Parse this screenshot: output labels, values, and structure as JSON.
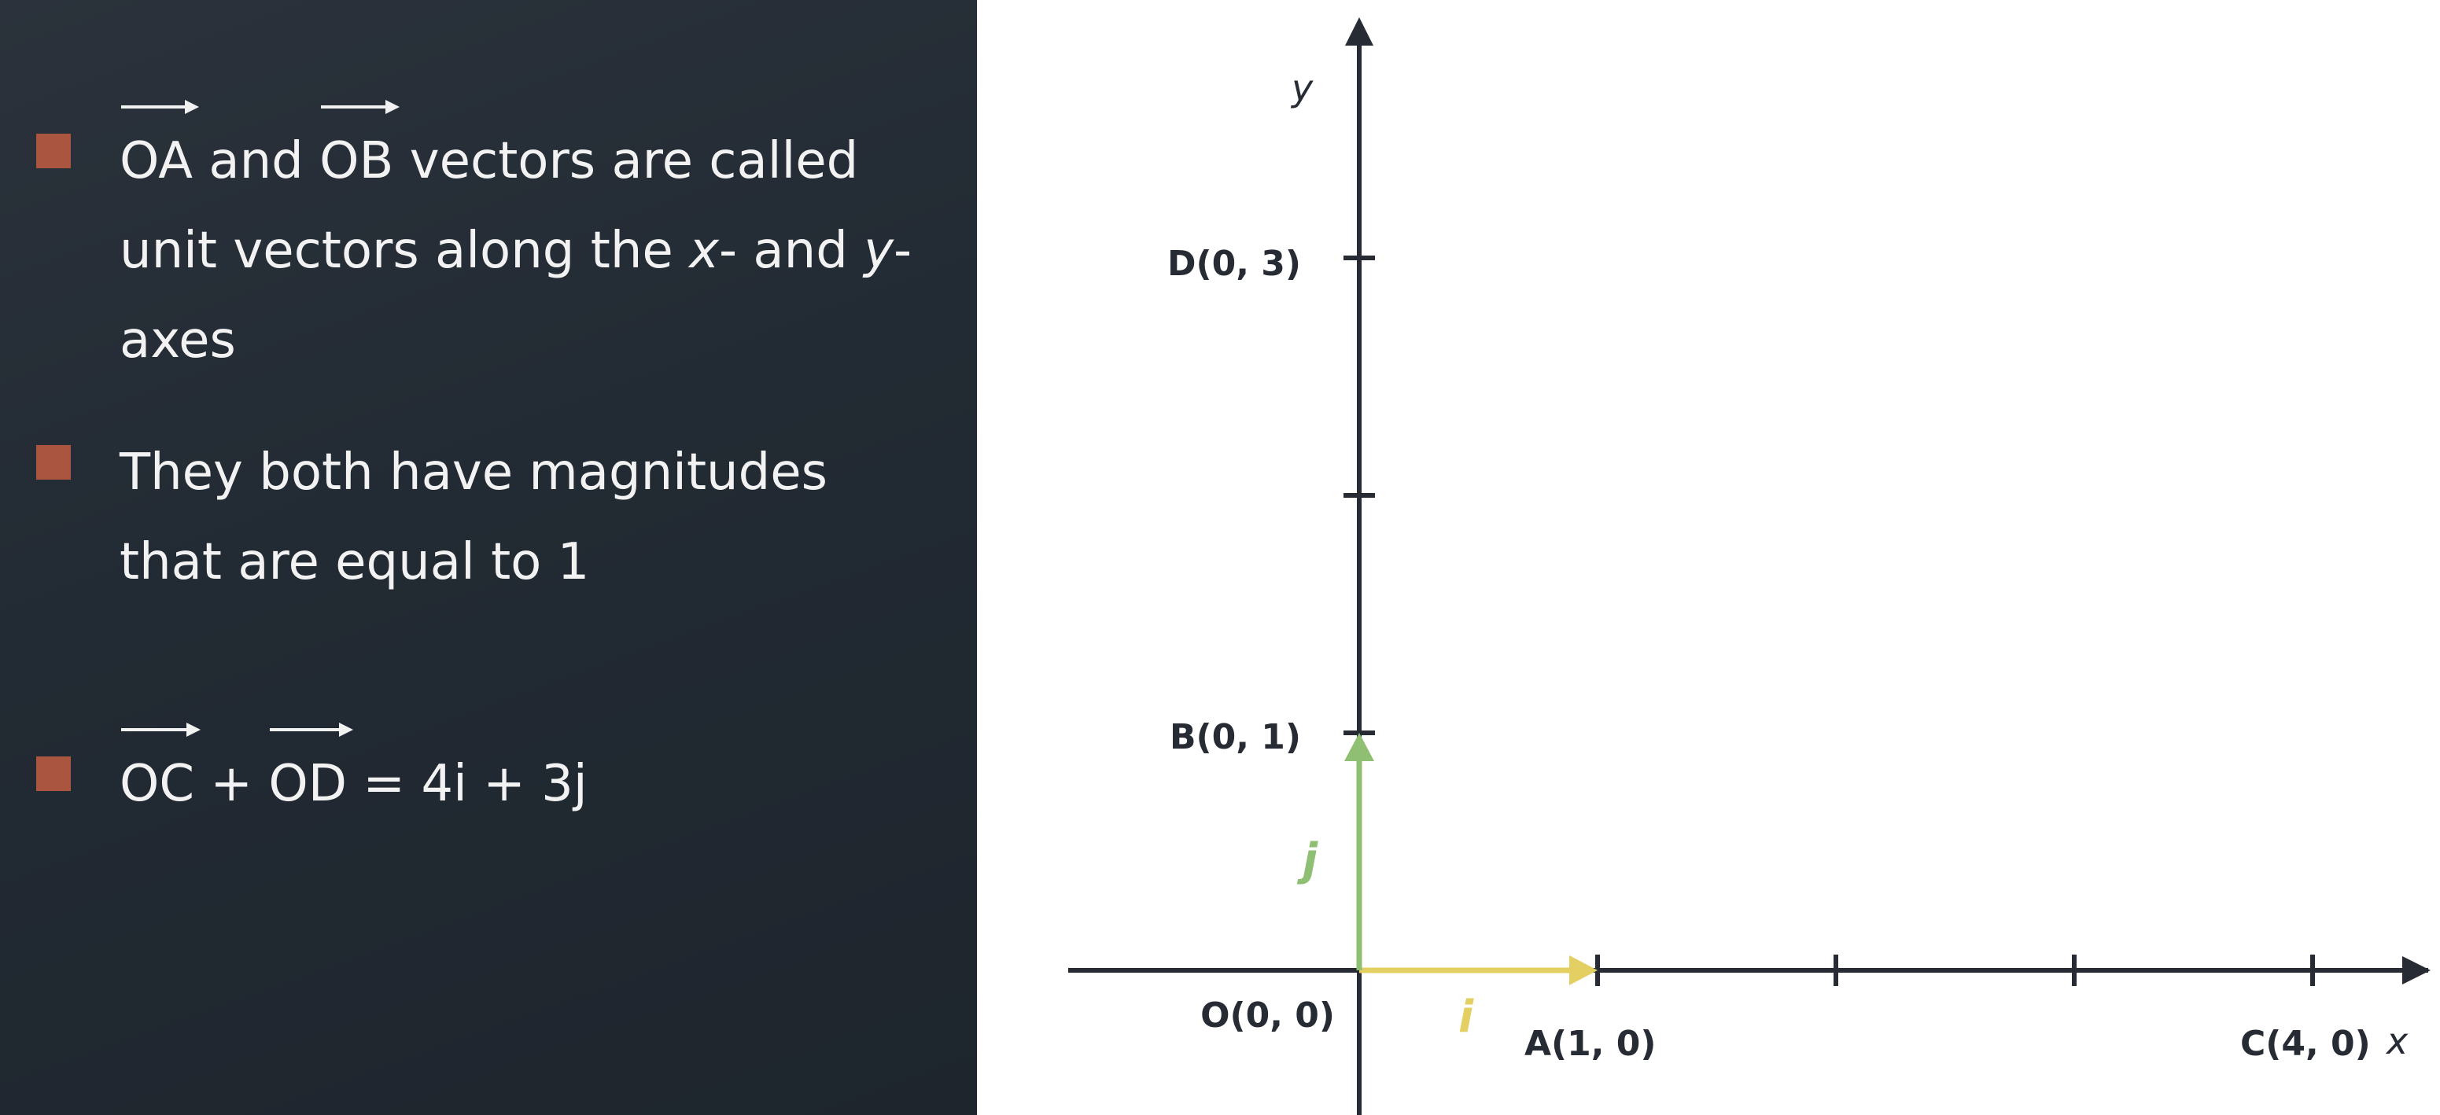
{
  "bullets": [
    {
      "vec1": "OA",
      "and": " and ",
      "vec2": "OB",
      "rest": " vectors are called unit vectors along the ",
      "x": "x",
      "mid": "- and ",
      "y": "y",
      "end": "-axes"
    },
    {
      "text": "They both have magnitudes that are equal to 1"
    },
    {
      "vec1": "OC",
      "plus": " + ",
      "vec2": "OD",
      "eq": " = 4i + 3j"
    }
  ],
  "diagram": {
    "axis_x_label": "x",
    "axis_y_label": "y",
    "points": {
      "O": "O(0, 0)",
      "A": "A(1, 0)",
      "B": "B(0, 1)",
      "C": "C(4, 0)",
      "D": "D(0, 3)"
    },
    "vectors": {
      "i": {
        "label": "i",
        "color": "#e3cf62",
        "from": [
          0,
          0
        ],
        "to": [
          1,
          0
        ]
      },
      "j": {
        "label": "j",
        "color": "#8fbf72",
        "from": [
          0,
          0
        ],
        "to": [
          0,
          1
        ]
      }
    },
    "x_ticks": [
      1,
      2,
      3,
      4
    ],
    "y_ticks": [
      1,
      2,
      3
    ],
    "colors": {
      "axis": "#262b34",
      "panel_bg": "#232a33",
      "bullet": "#a9553f",
      "text": "#f2f2f2"
    }
  }
}
